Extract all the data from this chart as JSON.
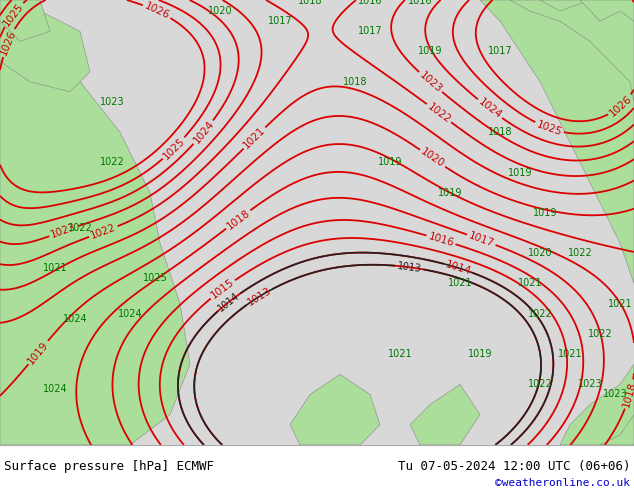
{
  "title_left": "Surface pressure [hPa] ECMWF",
  "title_right": "Tu 07-05-2024 12:00 UTC (06+06)",
  "credit": "©weatheronline.co.uk",
  "bg_color": "#d8d8d8",
  "land_color": "#aade9a",
  "contour_color_red": "#dd0000",
  "contour_color_black": "#222222",
  "label_color_red": "#cc0000",
  "label_color_black": "#222222",
  "label_color_green": "#007700",
  "bottom_bar_color": "#ffffff",
  "bottom_text_color": "#000000",
  "credit_color": "#0000cc",
  "figsize": [
    6.34,
    4.9
  ],
  "dpi": 100
}
